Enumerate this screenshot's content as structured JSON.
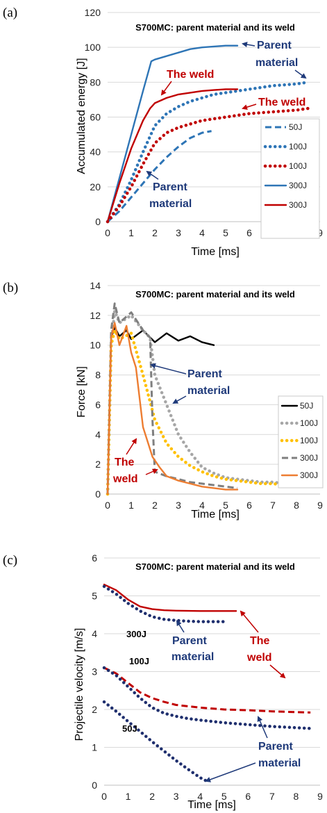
{
  "chart_data": [
    {
      "panel": "(a)",
      "type": "line",
      "title": "S700MC: parent material and its weld",
      "xlabel": "Time [ms]",
      "ylabel": "Accumulated energy [J]",
      "xlim": [
        0,
        9
      ],
      "ylim": [
        0,
        120
      ],
      "xticks": [
        "0",
        "1",
        "2",
        "3",
        "4",
        "5",
        "6",
        "7",
        "8",
        "9"
      ],
      "yticks": [
        "0",
        "20",
        "40",
        "60",
        "80",
        "100",
        "120"
      ],
      "grid": "horizontal",
      "legend_placement": "right",
      "series": [
        {
          "name": "50J",
          "color": "#2e75b6",
          "style": "dash",
          "x": [
            0,
            0.5,
            1,
            1.5,
            2,
            2.5,
            3,
            3.5,
            4,
            4.4
          ],
          "y": [
            0,
            6,
            14,
            22,
            30,
            37,
            43,
            48,
            51,
            52
          ]
        },
        {
          "name": "100J",
          "color": "#2e75b6",
          "style": "dot",
          "x": [
            0,
            0.5,
            1,
            1.5,
            2,
            2.5,
            3,
            3.5,
            4,
            4.5,
            5,
            5.5,
            6,
            6.5,
            7,
            7.5,
            8,
            8.5
          ],
          "y": [
            0,
            10,
            24,
            40,
            55,
            62,
            66,
            69,
            71,
            73,
            74,
            75,
            76,
            77,
            78,
            78.5,
            79,
            80
          ]
        },
        {
          "name": "100J",
          "color": "#c00000",
          "style": "dot",
          "x": [
            0,
            0.5,
            1,
            1.5,
            2,
            2.5,
            3,
            3.5,
            4,
            4.5,
            5,
            5.5,
            6,
            6.5,
            7,
            7.5,
            8,
            8.5
          ],
          "y": [
            0,
            9,
            20,
            33,
            45,
            51,
            54,
            56,
            58,
            59,
            60,
            61,
            62,
            62.5,
            63,
            63.5,
            64,
            65
          ]
        },
        {
          "name": "300J",
          "color": "#2e75b6",
          "style": "solid",
          "x": [
            0,
            0.5,
            1,
            1.5,
            1.85,
            2,
            2.5,
            3,
            3.5,
            4,
            4.5,
            5,
            5.5
          ],
          "y": [
            0,
            25,
            50,
            75,
            92,
            93,
            95,
            97,
            99,
            100,
            100.5,
            101,
            101
          ]
        },
        {
          "name": "300J",
          "color": "#c00000",
          "style": "solid",
          "x": [
            0,
            0.5,
            1,
            1.5,
            1.8,
            2,
            2.5,
            3,
            3.5,
            4,
            4.5,
            5,
            5.5
          ],
          "y": [
            0,
            22,
            42,
            58,
            65,
            68,
            71,
            73,
            74,
            75,
            75.5,
            76,
            76
          ]
        }
      ],
      "annotations": [
        {
          "text": "The weld",
          "color": "#c00000"
        },
        {
          "text": "Parent",
          "color": "#1f3a7a"
        },
        {
          "text": "material",
          "color": "#1f3a7a"
        },
        {
          "text": "The weld",
          "color": "#c00000"
        },
        {
          "text": "Parent",
          "color": "#1f3a7a"
        },
        {
          "text": "material",
          "color": "#1f3a7a"
        }
      ]
    },
    {
      "panel": "(b)",
      "type": "line",
      "title": "S700MC: parent material and its weld",
      "xlabel": "Time [ms]",
      "ylabel": "Force [kN]",
      "xlim": [
        0,
        9
      ],
      "ylim": [
        0,
        14
      ],
      "xticks": [
        "0",
        "1",
        "2",
        "3",
        "4",
        "5",
        "6",
        "7",
        "8",
        "9"
      ],
      "yticks": [
        "0",
        "2",
        "4",
        "6",
        "8",
        "10",
        "12",
        "14"
      ],
      "grid": "horizontal",
      "legend_placement": "right",
      "series": [
        {
          "name": "50J",
          "color": "#000000",
          "style": "solid",
          "x": [
            0,
            0.15,
            0.3,
            0.5,
            0.8,
            1,
            1.5,
            2,
            2.5,
            3,
            3.5,
            4,
            4.5
          ],
          "y": [
            0,
            10.5,
            11.2,
            10.6,
            11,
            10.4,
            11,
            10.2,
            10.8,
            10.3,
            10.6,
            10.2,
            10
          ]
        },
        {
          "name": "100J",
          "color": "#a6a6a6",
          "style": "dot",
          "x": [
            0,
            0.15,
            0.3,
            0.5,
            1,
            1.5,
            1.8,
            2,
            2.5,
            3,
            3.5,
            4,
            4.5,
            5,
            5.5,
            6,
            6.5,
            7,
            7.5,
            8,
            8.5
          ],
          "y": [
            0,
            10,
            12.3,
            11.5,
            12,
            11,
            10.5,
            8,
            6,
            4,
            2.8,
            1.8,
            1.4,
            1.1,
            1,
            0.9,
            0.8,
            0.8,
            0.7,
            0.7,
            0.6
          ]
        },
        {
          "name": "100J",
          "color": "#ffc000",
          "style": "dot",
          "x": [
            0,
            0.15,
            0.3,
            0.5,
            1,
            1.5,
            2,
            2.5,
            3,
            3.5,
            4,
            4.5,
            5,
            5.5,
            6,
            6.5,
            7,
            7.5,
            8,
            8.5
          ],
          "y": [
            0,
            10,
            11,
            10.4,
            10.8,
            8,
            5,
            3.4,
            2.5,
            1.9,
            1.5,
            1.2,
            1,
            0.9,
            0.8,
            0.7,
            0.7,
            0.6,
            0.6,
            0.5
          ]
        },
        {
          "name": "300J",
          "color": "#7f7f7f",
          "style": "dash",
          "x": [
            0,
            0.15,
            0.3,
            0.5,
            1,
            1.5,
            1.8,
            1.9,
            2,
            2.5,
            3,
            3.5,
            4,
            4.5,
            5,
            5.5
          ],
          "y": [
            0,
            11,
            12.8,
            11.5,
            12.2,
            11,
            10.5,
            5,
            1.5,
            1.2,
            1,
            0.8,
            0.7,
            0.6,
            0.5,
            0.4
          ]
        },
        {
          "name": "300J",
          "color": "#ed7d31",
          "style": "solid",
          "x": [
            0,
            0.15,
            0.3,
            0.5,
            0.8,
            1,
            1.2,
            1.5,
            1.7,
            1.9,
            2.2,
            2.5,
            3,
            3.5,
            4,
            4.5,
            5,
            5.5
          ],
          "y": [
            0,
            10.5,
            11.5,
            10,
            11.3,
            9.5,
            8.5,
            4.5,
            3.5,
            2.5,
            1.8,
            1.2,
            0.9,
            0.7,
            0.5,
            0.4,
            0.3,
            0.3
          ]
        }
      ],
      "annotations": [
        {
          "text": "Parent",
          "color": "#1f3a7a"
        },
        {
          "text": "material",
          "color": "#1f3a7a"
        },
        {
          "text": "The",
          "color": "#c00000"
        },
        {
          "text": "weld",
          "color": "#c00000"
        }
      ]
    },
    {
      "panel": "(c)",
      "type": "line",
      "title": "S700MC: parent material and its weld",
      "xlabel": "Time [ms]",
      "ylabel": "Projectile velocity [m/s]",
      "xlim": [
        0,
        9
      ],
      "ylim": [
        0,
        6
      ],
      "xticks": [
        "0",
        "1",
        "2",
        "3",
        "4",
        "5",
        "6",
        "7",
        "8",
        "9"
      ],
      "yticks": [
        "0",
        "1",
        "2",
        "3",
        "4",
        "5",
        "6"
      ],
      "grid": "horizontal",
      "legend_placement": "none",
      "series": [
        {
          "color": "#c00000",
          "style": "solid",
          "x": [
            0,
            0.5,
            1,
            1.5,
            2,
            2.5,
            3,
            4,
            5,
            5.5
          ],
          "y": [
            5.3,
            5.15,
            4.9,
            4.72,
            4.65,
            4.62,
            4.61,
            4.6,
            4.6,
            4.6
          ]
        },
        {
          "color": "#1f2f6e",
          "style": "dot",
          "x": [
            0,
            0.5,
            1,
            1.5,
            2,
            2.5,
            3,
            3.5,
            4,
            4.5,
            5
          ],
          "y": [
            5.25,
            5.05,
            4.8,
            4.6,
            4.45,
            4.38,
            4.35,
            4.33,
            4.32,
            4.32,
            4.32
          ]
        },
        {
          "color": "#c00000",
          "style": "dash",
          "x": [
            0,
            0.5,
            1,
            1.5,
            2,
            2.5,
            3,
            4,
            5,
            6,
            7,
            8,
            8.6
          ],
          "y": [
            3.1,
            2.95,
            2.7,
            2.45,
            2.3,
            2.2,
            2.12,
            2.05,
            2.0,
            1.98,
            1.95,
            1.93,
            1.92
          ]
        },
        {
          "color": "#1f2f6e",
          "style": "dot",
          "x": [
            0,
            0.5,
            1,
            1.5,
            2,
            2.5,
            3,
            3.5,
            4,
            5,
            6,
            7,
            8,
            8.6
          ],
          "y": [
            3.1,
            2.9,
            2.6,
            2.3,
            2.05,
            1.9,
            1.82,
            1.76,
            1.72,
            1.65,
            1.6,
            1.55,
            1.52,
            1.5
          ]
        },
        {
          "color": "#1f2f6e",
          "style": "dot",
          "x": [
            0,
            0.5,
            1,
            1.5,
            2,
            2.5,
            3,
            3.5,
            4,
            4.3
          ],
          "y": [
            2.2,
            1.95,
            1.68,
            1.42,
            1.15,
            0.9,
            0.65,
            0.42,
            0.2,
            0.1
          ]
        }
      ],
      "annotations": [
        {
          "text": "300J",
          "color": "#000000"
        },
        {
          "text": "100J",
          "color": "#000000"
        },
        {
          "text": "50J",
          "color": "#000000"
        },
        {
          "text": "Parent",
          "color": "#1f3a7a"
        },
        {
          "text": "material",
          "color": "#1f3a7a"
        },
        {
          "text": "The",
          "color": "#c00000"
        },
        {
          "text": "weld",
          "color": "#c00000"
        },
        {
          "text": "Parent",
          "color": "#1f3a7a"
        },
        {
          "text": "material",
          "color": "#1f3a7a"
        }
      ]
    }
  ]
}
